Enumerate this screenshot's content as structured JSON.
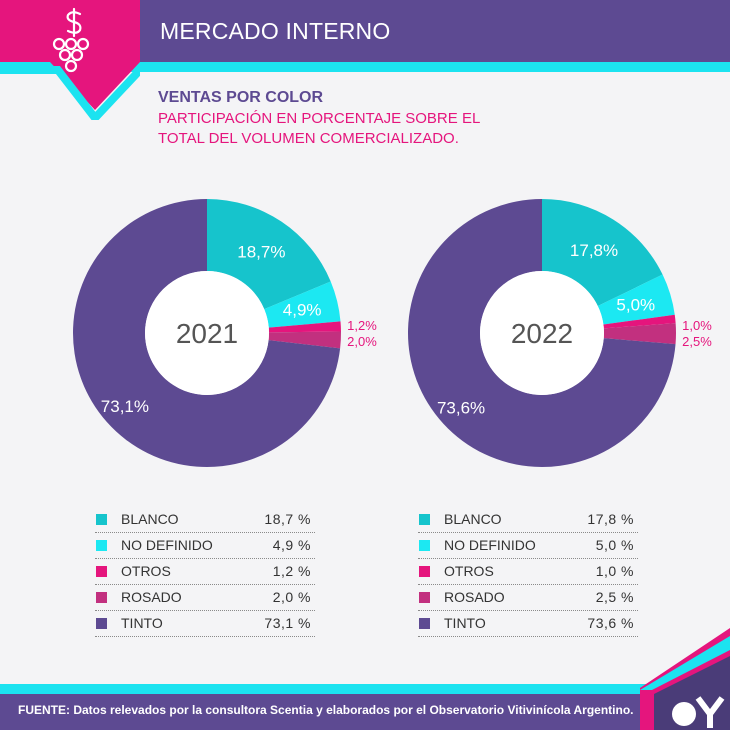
{
  "header": {
    "title": "MERCADO INTERNO"
  },
  "subtitle": {
    "title": "VENTAS POR COLOR",
    "description_line1": "PARTICIPACIÓN EN PORCENTAJE SOBRE EL",
    "description_line2": "TOTAL DEL VOLUMEN COMERCIALIZADO."
  },
  "footer": {
    "label": "FUENTE:",
    "text": " Datos relevados por la consultora Scentia y elaborados por el Observatorio Vitivinícola Argentino."
  },
  "colors": {
    "BLANCO": "#16c4cc",
    "NO DEFINIDO": "#1ce8f2",
    "OTROS": "#e5157d",
    "ROSADO": "#c2307f",
    "TINTO": "#5d4a92",
    "accent_magenta": "#e5157d",
    "accent_cyan": "#1ce3f0"
  },
  "icons": [
    "wine-grape-dollar-icon",
    "brand-logo-icon"
  ],
  "chart_data": [
    {
      "type": "pie",
      "center_label": "2021",
      "categories": [
        "BLANCO",
        "NO DEFINIDO",
        "OTROS",
        "ROSADO",
        "TINTO"
      ],
      "values": [
        18.7,
        4.9,
        1.2,
        2.0,
        73.1
      ],
      "slice_labels": [
        "18,7%",
        "4,9%",
        "1,2%",
        "2,0%",
        "73,1%"
      ],
      "legend_values": [
        "18,7 %",
        "4,9 %",
        "1,2 %",
        "2,0 %",
        "73,1 %"
      ]
    },
    {
      "type": "pie",
      "center_label": "2022",
      "categories": [
        "BLANCO",
        "NO DEFINIDO",
        "OTROS",
        "ROSADO",
        "TINTO"
      ],
      "values": [
        17.8,
        5.0,
        1.0,
        2.5,
        73.6
      ],
      "slice_labels": [
        "17,8%",
        "5,0%",
        "1,0%",
        "2,5%",
        "73,6%"
      ],
      "legend_values": [
        "17,8 %",
        "5,0 %",
        "1,0 %",
        "2,5 %",
        "73,6 %"
      ]
    }
  ]
}
